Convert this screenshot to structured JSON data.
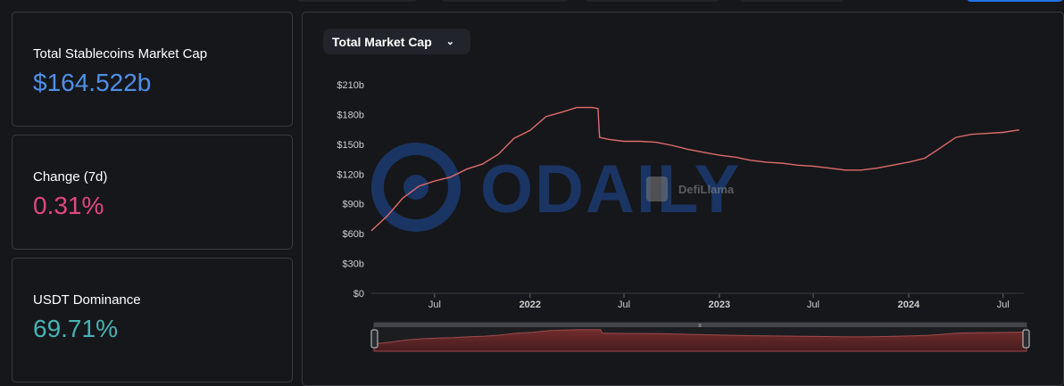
{
  "stats": [
    {
      "label": "Total Stablecoins Market Cap",
      "value": "$164.522b",
      "color": "#4e90ea"
    },
    {
      "label": "Change (7d)",
      "value": "0.31%",
      "color": "#e1477d"
    },
    {
      "label": "USDT Dominance",
      "value": "69.71%",
      "color": "#46b4b4"
    }
  ],
  "dropdown": {
    "label": "Total Market Cap",
    "icon": "chevron-down-icon"
  },
  "watermarks": {
    "odaily": "ODAILY",
    "defillama": "DefiLlama"
  },
  "chart_data": {
    "type": "line",
    "series": [
      {
        "color": "#e06c6c",
        "points": [
          [
            "2021-03-01",
            63
          ],
          [
            "2021-04-01",
            78
          ],
          [
            "2021-05-01",
            96
          ],
          [
            "2021-06-01",
            108
          ],
          [
            "2021-07-01",
            113
          ],
          [
            "2021-08-01",
            117
          ],
          [
            "2021-09-01",
            125
          ],
          [
            "2021-10-01",
            130
          ],
          [
            "2021-11-01",
            140
          ],
          [
            "2021-12-01",
            156
          ],
          [
            "2022-01-01",
            164
          ],
          [
            "2022-02-01",
            178
          ],
          [
            "2022-03-01",
            182
          ],
          [
            "2022-04-01",
            187
          ],
          [
            "2022-05-01",
            187
          ],
          [
            "2022-05-12",
            186
          ],
          [
            "2022-05-15",
            157
          ],
          [
            "2022-06-01",
            155
          ],
          [
            "2022-07-01",
            153
          ],
          [
            "2022-08-01",
            153
          ],
          [
            "2022-09-01",
            152
          ],
          [
            "2022-10-01",
            149
          ],
          [
            "2022-11-01",
            145
          ],
          [
            "2022-12-01",
            142
          ],
          [
            "2023-01-01",
            139
          ],
          [
            "2023-02-01",
            137
          ],
          [
            "2023-03-01",
            134
          ],
          [
            "2023-04-01",
            132
          ],
          [
            "2023-05-01",
            131
          ],
          [
            "2023-06-01",
            129
          ],
          [
            "2023-07-01",
            128
          ],
          [
            "2023-08-01",
            126
          ],
          [
            "2023-09-01",
            124
          ],
          [
            "2023-10-01",
            124
          ],
          [
            "2023-11-01",
            126
          ],
          [
            "2023-12-01",
            129
          ],
          [
            "2024-01-01",
            132
          ],
          [
            "2024-02-01",
            136
          ],
          [
            "2024-03-01",
            146
          ],
          [
            "2024-04-01",
            157
          ],
          [
            "2024-05-01",
            160
          ],
          [
            "2024-06-01",
            161
          ],
          [
            "2024-07-01",
            162
          ],
          [
            "2024-08-01",
            164.5
          ]
        ]
      }
    ],
    "x_range": [
      "2021-03-01",
      "2024-08-10"
    ],
    "x_ticks": [
      {
        "date": "2021-07-01",
        "label": "Jul",
        "bold": false
      },
      {
        "date": "2022-01-01",
        "label": "2022",
        "bold": true
      },
      {
        "date": "2022-07-01",
        "label": "Jul",
        "bold": false
      },
      {
        "date": "2023-01-01",
        "label": "2023",
        "bold": true
      },
      {
        "date": "2023-07-01",
        "label": "Jul",
        "bold": false
      },
      {
        "date": "2024-01-01",
        "label": "2024",
        "bold": true
      },
      {
        "date": "2024-07-01",
        "label": "Jul",
        "bold": false
      }
    ],
    "y_ticks": [
      {
        "value": 0,
        "label": "$0"
      },
      {
        "value": 30,
        "label": "$30b"
      },
      {
        "value": 60,
        "label": "$60b"
      },
      {
        "value": 90,
        "label": "$90b"
      },
      {
        "value": 120,
        "label": "$120b"
      },
      {
        "value": 150,
        "label": "$150b"
      },
      {
        "value": 180,
        "label": "$180b"
      },
      {
        "value": 210,
        "label": "$210b"
      }
    ],
    "ylim": [
      0,
      210
    ],
    "grid": false,
    "brush": true
  }
}
